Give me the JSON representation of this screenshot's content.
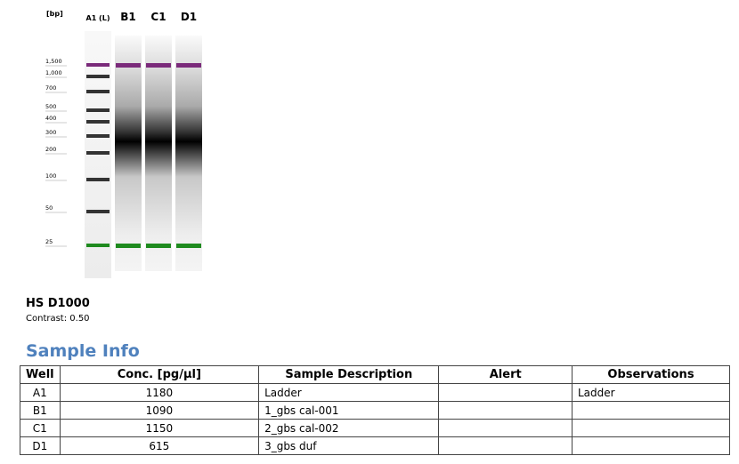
{
  "gel": {
    "unit_label": "[bp]",
    "lanes": [
      "A1 (L)",
      "B1",
      "C1",
      "D1"
    ],
    "size_labels": [
      "1,500",
      "1,000",
      "700",
      "500",
      "400",
      "300",
      "200",
      "100",
      "50",
      "25"
    ],
    "assay": "HS D1000",
    "contrast": "Contrast: 0.50"
  },
  "section_title": "Sample Info",
  "table": {
    "header": [
      "Well",
      "Conc. [pg/µl]",
      "Sample Description",
      "Alert",
      "Observations"
    ],
    "rows": [
      [
        "A1",
        "1180",
        "Ladder",
        "",
        "Ladder"
      ],
      [
        "B1",
        "1090",
        "1_gbs cal-001",
        "",
        ""
      ],
      [
        "C1",
        "1150",
        "2_gbs cal-002",
        "",
        ""
      ],
      [
        "D1",
        "615",
        "3_gbs duf",
        "",
        ""
      ]
    ]
  }
}
